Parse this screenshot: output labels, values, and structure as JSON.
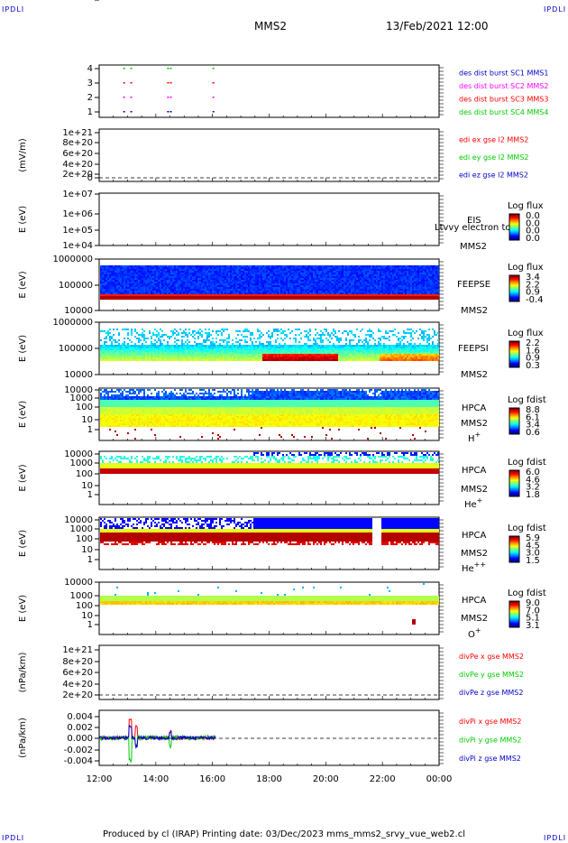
{
  "corners": {
    "top_left": "IPDLI",
    "top_right": "IPDLI",
    "bottom_left": "IPDLI",
    "bottom_right": "IPDLI"
  },
  "header": {
    "title": "MMS2",
    "datetime": "13/Feb/2021 12:00"
  },
  "footer": "Produced by cl (IRAP)    Printing date: 03/Dec/2023    mms_mms2_srvy_vue_web2.cl",
  "colors": {
    "red": "#ff0000",
    "green": "#00cc00",
    "blue": "#0000cc",
    "magenta": "#ff00ff"
  },
  "chart_data": {
    "type": "multi-panel",
    "x_tick_labels": [
      "12:00",
      "14:00",
      "16:00",
      "18:00",
      "20:00",
      "22:00",
      "00:00"
    ],
    "x_range_hours": [
      12,
      24
    ],
    "panels": [
      {
        "id": "des-dist",
        "type": "scatter",
        "y_ticks": [
          "4",
          "3",
          "2",
          "1"
        ],
        "legend": [
          {
            "text": "des dist burst SC1 MMS1",
            "color": "blue"
          },
          {
            "text": "des dist burst SC2 MMS2",
            "color": "magenta"
          },
          {
            "text": "des dist burst SC3 MMS3",
            "color": "red"
          },
          {
            "text": "des dist burst SC4 MMS4",
            "color": "green"
          }
        ],
        "burst_times_hours": [
          12.85,
          13.1,
          14.4,
          14.5,
          16.0
        ]
      },
      {
        "id": "edi",
        "type": "line",
        "ylabel": "(mV/m)",
        "y_ticks": [
          "1e+21",
          "8e+20",
          "6e+20",
          "4e+20",
          "2e+20",
          "0"
        ],
        "legend": [
          {
            "text": "edi ex gse l2 MMS2",
            "color": "red"
          },
          {
            "text": "edi ey gse l2 MMS2",
            "color": "green"
          },
          {
            "text": "edi ez gse l2 MMS2",
            "color": "blue"
          }
        ]
      },
      {
        "id": "eis",
        "type": "heatmap",
        "ylabel": "E (eV)",
        "y_ticks": [
          "1e+07",
          "1e+06",
          "1e+05",
          "1e+04"
        ],
        "labels": [
          "EIS",
          "Ltvvy electron to",
          "MMS2"
        ],
        "colorbar": {
          "title": "Log flux",
          "ticks": [
            "0.0",
            "0.0",
            "0.0",
            "0.0"
          ]
        }
      },
      {
        "id": "feepse",
        "type": "heatmap",
        "ylabel": "E (eV)",
        "y_ticks": [
          "1000000",
          "100000",
          "10000"
        ],
        "labels": [
          "FEEPSE",
          "MMS2"
        ],
        "colorbar": {
          "title": "Log flux",
          "ticks": [
            "3.4",
            "2.2",
            "0.9",
            "-0.4"
          ]
        }
      },
      {
        "id": "feepsi",
        "type": "heatmap",
        "ylabel": "E (eV)",
        "y_ticks": [
          "1000000",
          "100000",
          "10000"
        ],
        "labels": [
          "FEEPSI",
          "MMS2"
        ],
        "colorbar": {
          "title": "Log flux",
          "ticks": [
            "2.2",
            "1.6",
            "0.9",
            "0.3"
          ]
        }
      },
      {
        "id": "hpca-h",
        "type": "heatmap",
        "ylabel": "E (eV)",
        "y_ticks": [
          "10000",
          "1000",
          "100",
          "10",
          "1"
        ],
        "labels": [
          "HPCA",
          "MMS2",
          "H+"
        ],
        "colorbar": {
          "title": "Log fdist",
          "ticks": [
            "8.8",
            "6.1",
            "3.4",
            "0.6"
          ]
        }
      },
      {
        "id": "hpca-he",
        "type": "heatmap",
        "ylabel": "E (eV)",
        "y_ticks": [
          "10000",
          "1000",
          "100",
          "10",
          "1"
        ],
        "labels": [
          "HPCA",
          "MMS2",
          "He+"
        ],
        "colorbar": {
          "title": "Log fdist",
          "ticks": [
            "6.0",
            "4.6",
            "3.2",
            "1.8"
          ]
        }
      },
      {
        "id": "hpca-hepp",
        "type": "heatmap",
        "ylabel": "E (eV)",
        "y_ticks": [
          "10000",
          "1000",
          "100",
          "10",
          "1"
        ],
        "labels": [
          "HPCA",
          "MMS2",
          "He++"
        ],
        "colorbar": {
          "title": "Log fdist",
          "ticks": [
            "5.9",
            "4.5",
            "3.0",
            "1.5"
          ]
        }
      },
      {
        "id": "hpca-o",
        "type": "heatmap",
        "ylabel": "E (eV)",
        "y_ticks": [
          "10000",
          "1000",
          "100",
          "10",
          "1"
        ],
        "labels": [
          "HPCA",
          "MMS2",
          "O+"
        ],
        "colorbar": {
          "title": "Log fdist",
          "ticks": [
            "9.0",
            "7.0",
            "5.1",
            "3.1"
          ]
        }
      },
      {
        "id": "divpe",
        "type": "line",
        "ylabel": "(nPa/km)",
        "y_ticks": [
          "1e+21",
          "8e+20",
          "6e+20",
          "4e+20",
          "2e+20",
          "0"
        ],
        "legend": [
          {
            "text": "divPe x gse MMS2",
            "color": "red"
          },
          {
            "text": "divPe y gse MMS2",
            "color": "green"
          },
          {
            "text": "divPe z gse MMS2",
            "color": "blue"
          }
        ]
      },
      {
        "id": "divpi",
        "type": "line",
        "ylabel": "(nPa/km)",
        "y_ticks": [
          "0.004",
          "0.002",
          "0.000",
          "-0.002",
          "-0.004"
        ],
        "y_range": [
          -0.005,
          0.005
        ],
        "legend": [
          {
            "text": "divPi x gse MMS2",
            "color": "red"
          },
          {
            "text": "divPi y gse MMS2",
            "color": "green"
          },
          {
            "text": "divPi z gse MMS2",
            "color": "blue"
          }
        ],
        "data_extent_hours": [
          12.0,
          16.1
        ]
      }
    ]
  }
}
